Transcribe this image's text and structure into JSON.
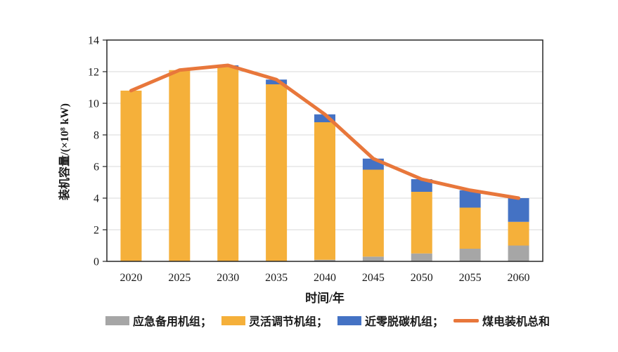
{
  "chart_data": {
    "type": "bar",
    "stacked": true,
    "title": "",
    "xlabel": "时间/年",
    "ylabel": "装机容量/(×10⁸ kW)",
    "categories": [
      "2020",
      "2025",
      "2030",
      "2035",
      "2040",
      "2045",
      "2050",
      "2055",
      "2060"
    ],
    "series": [
      {
        "name": "应急备用机组",
        "color": "#A6A6A6",
        "values": [
          0,
          0,
          0,
          0,
          0.1,
          0.3,
          0.5,
          0.8,
          1.0
        ]
      },
      {
        "name": "灵活调节机组",
        "color": "#F5B03A",
        "values": [
          10.8,
          12.1,
          12.3,
          11.2,
          8.7,
          5.5,
          3.9,
          2.6,
          1.5
        ]
      },
      {
        "name": "近零脱碳机组",
        "color": "#4472C4",
        "values": [
          0,
          0,
          0.1,
          0.3,
          0.5,
          0.7,
          0.8,
          1.1,
          1.5
        ]
      }
    ],
    "line_series": {
      "name": "煤电装机总和",
      "color": "#E8773B",
      "values": [
        10.8,
        12.1,
        12.4,
        11.5,
        9.3,
        6.5,
        5.2,
        4.5,
        4.0
      ]
    },
    "ylim": [
      0,
      14
    ],
    "ytick_step": 2,
    "grid": "horizontal",
    "legend_position": "bottom",
    "legend": {
      "item1": "应急备用机组；",
      "item2": "灵活调节机组；",
      "item3": "近零脱碳机组；",
      "item4": "煤电装机总和"
    }
  },
  "colors": {
    "axis": "#262626",
    "grid": "#D9D9D9",
    "background": "#FFFFFF"
  }
}
